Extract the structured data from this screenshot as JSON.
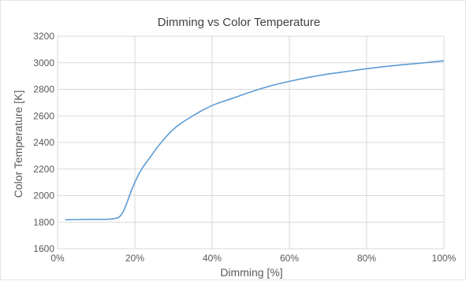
{
  "chart_data": {
    "type": "line",
    "title": "Dimming vs Color Temperature",
    "xlabel": "Dimming  [%]",
    "ylabel": "Color Temperature [K]",
    "xlim": [
      0,
      100
    ],
    "ylim": [
      1600,
      3200
    ],
    "x_ticks": [
      "0%",
      "20%",
      "40%",
      "60%",
      "80%",
      "100%"
    ],
    "x_tick_values": [
      0,
      20,
      40,
      60,
      80,
      100
    ],
    "y_ticks": [
      "1600",
      "1800",
      "2000",
      "2200",
      "2400",
      "2600",
      "2800",
      "3000",
      "3200"
    ],
    "y_tick_values": [
      1600,
      1800,
      2000,
      2200,
      2400,
      2600,
      2800,
      3000,
      3200
    ],
    "grid": true,
    "line_color": "#5b9bd5",
    "series": [
      {
        "x": [
          2,
          5,
          8,
          11,
          13,
          15,
          16,
          17,
          18,
          19,
          20,
          21,
          22,
          24,
          26,
          28,
          30,
          32,
          35,
          38,
          41,
          45,
          50,
          55,
          60,
          65,
          70,
          75,
          80,
          85,
          90,
          95,
          100
        ],
        "values": [
          1818,
          1820,
          1821,
          1821,
          1822,
          1828,
          1840,
          1880,
          1950,
          2030,
          2100,
          2160,
          2210,
          2290,
          2370,
          2440,
          2500,
          2545,
          2600,
          2650,
          2690,
          2730,
          2780,
          2825,
          2860,
          2890,
          2915,
          2935,
          2955,
          2972,
          2987,
          3000,
          3015
        ]
      }
    ]
  }
}
